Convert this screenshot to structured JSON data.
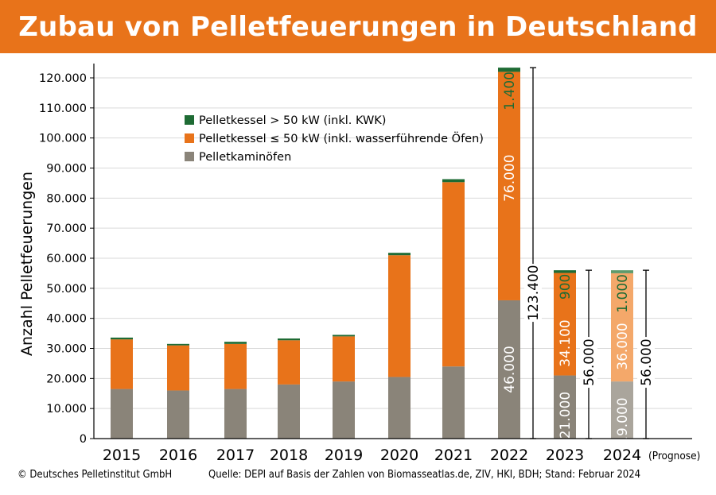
{
  "title": "Zubau von Pelletfeuerungen in Deutschland",
  "footer": {
    "copyright": "© Deutsches Pelletinstitut GmbH",
    "source": "Quelle: DEPI auf Basis der Zahlen von Biomasseatlas.de, ZIV, HKI, BDH; Stand: Februar 2024"
  },
  "chart_data": {
    "type": "bar",
    "stacked": true,
    "ylabel": "Anzahl Pelletfeuerungen",
    "ylim": [
      0,
      120000
    ],
    "yticks": [
      0,
      10000,
      20000,
      30000,
      40000,
      50000,
      60000,
      70000,
      80000,
      90000,
      100000,
      110000,
      120000
    ],
    "ytick_labels": [
      "0",
      "10.000",
      "20.000",
      "30.000",
      "40.000",
      "50.000",
      "60.000",
      "70.000",
      "80.000",
      "90.000",
      "100.000",
      "110.000",
      "120.000"
    ],
    "grid": true,
    "legend_position": "top-left",
    "categories": [
      "2015",
      "2016",
      "2017",
      "2018",
      "2019",
      "2020",
      "2021",
      "2022",
      "2023",
      "2024"
    ],
    "category_note": {
      "index": 9,
      "text": "(Prognose)"
    },
    "series": [
      {
        "name": "Pelletkaminöfen",
        "color": "#8a8479",
        "forecast_color": "#aaa59c",
        "values": [
          16500,
          16000,
          16500,
          18000,
          19000,
          20500,
          24000,
          46000,
          21000,
          19000
        ],
        "value_labels": [
          "",
          "",
          "",
          "",
          "",
          "",
          "",
          "46.000",
          "21.000",
          "19.000"
        ]
      },
      {
        "name": "Pelletkessel ≤ 50 kW (inkl. wasserführende Öfen)",
        "color": "#e8731a",
        "forecast_color": "#f4a86a",
        "values": [
          16500,
          15000,
          15000,
          14700,
          15000,
          40500,
          61300,
          76000,
          34100,
          36000
        ],
        "value_labels": [
          "",
          "",
          "",
          "",
          "",
          "",
          "",
          "76.000",
          "34.100",
          "36.000"
        ]
      },
      {
        "name": "Pelletkessel > 50 kW (inkl. KWK)",
        "color": "#1e6b34",
        "forecast_color": "#5f9a6a",
        "values": [
          600,
          500,
          700,
          600,
          500,
          800,
          1000,
          1400,
          900,
          1000
        ],
        "value_labels": [
          "",
          "",
          "",
          "",
          "",
          "",
          "",
          "1.400",
          "900",
          "1.000"
        ]
      }
    ],
    "totals": [
      {
        "index": 7,
        "value": 123400,
        "label": "123.400"
      },
      {
        "index": 8,
        "value": 56000,
        "label": "56.000"
      },
      {
        "index": 9,
        "value": 56000,
        "label": "56.000"
      }
    ]
  }
}
